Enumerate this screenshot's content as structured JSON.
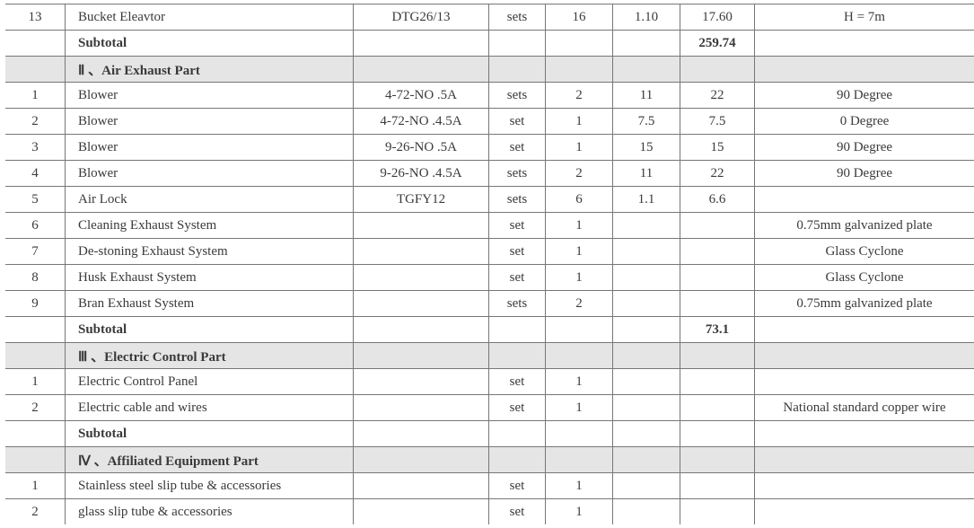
{
  "labels": {
    "subtotal": "Subtotal"
  },
  "rows": [
    {
      "type": "data",
      "topOpen": true,
      "c": [
        "13",
        "Bucket Eleavtor",
        "DTG26/13",
        "sets",
        "16",
        "1.10",
        "17.60",
        "H = 7m"
      ]
    },
    {
      "type": "subtotal",
      "openBottom": false,
      "value": "259.74"
    },
    {
      "type": "section",
      "title": "Ⅱ 、Air  Exhaust Part"
    },
    {
      "type": "data",
      "c": [
        "1",
        "Blower",
        "4-72-NO .5A",
        "sets",
        "2",
        "11",
        "22",
        "90 Degree"
      ]
    },
    {
      "type": "data",
      "c": [
        "2",
        "Blower",
        "4-72-NO .4.5A",
        "set",
        "1",
        "7.5",
        "7.5",
        "0 Degree"
      ]
    },
    {
      "type": "data",
      "c": [
        "3",
        "Blower",
        "9-26-NO .5A",
        "set",
        "1",
        "15",
        "15",
        "90 Degree"
      ]
    },
    {
      "type": "data",
      "c": [
        "4",
        "Blower",
        "9-26-NO .4.5A",
        "sets",
        "2",
        "11",
        "22",
        "90 Degree"
      ]
    },
    {
      "type": "data",
      "c": [
        "5",
        "Air Lock",
        "TGFY12",
        "sets",
        "6",
        "1.1",
        "6.6",
        ""
      ]
    },
    {
      "type": "data",
      "c": [
        "6",
        "Cleaning Exhaust System",
        "",
        "set",
        "1",
        "",
        "",
        "0.75mm galvanized plate"
      ]
    },
    {
      "type": "data",
      "c": [
        "7",
        "De-stoning Exhaust System",
        "",
        "set",
        "1",
        "",
        "",
        "Glass Cyclone"
      ]
    },
    {
      "type": "data",
      "c": [
        "8",
        "Husk Exhaust System",
        "",
        "set",
        "1",
        "",
        "",
        "Glass Cyclone"
      ]
    },
    {
      "type": "data",
      "c": [
        "9",
        "Bran Exhaust System",
        "",
        "sets",
        "2",
        "",
        "",
        "0.75mm galvanized plate"
      ]
    },
    {
      "type": "subtotal",
      "openBottom": false,
      "value": "73.1"
    },
    {
      "type": "section",
      "title": "Ⅲ 、Electric Control Part"
    },
    {
      "type": "data",
      "c": [
        "1",
        "Electric Control Panel",
        "",
        "set",
        "1",
        "",
        "",
        ""
      ]
    },
    {
      "type": "data",
      "c": [
        "2",
        "Electric cable and wires",
        "",
        "set",
        "1",
        "",
        "",
        "National standard copper wire"
      ]
    },
    {
      "type": "subtotal",
      "openBottom": false,
      "value": ""
    },
    {
      "type": "section",
      "title": "Ⅳ 、Affiliated Equipment Part"
    },
    {
      "type": "data",
      "c": [
        "1",
        "Stainless steel slip tube & accessories",
        "",
        "set",
        "1",
        "",
        "",
        ""
      ]
    },
    {
      "type": "data",
      "c": [
        "2",
        "glass slip tube & accessories",
        "",
        "set",
        "1",
        "",
        "",
        ""
      ]
    }
  ]
}
